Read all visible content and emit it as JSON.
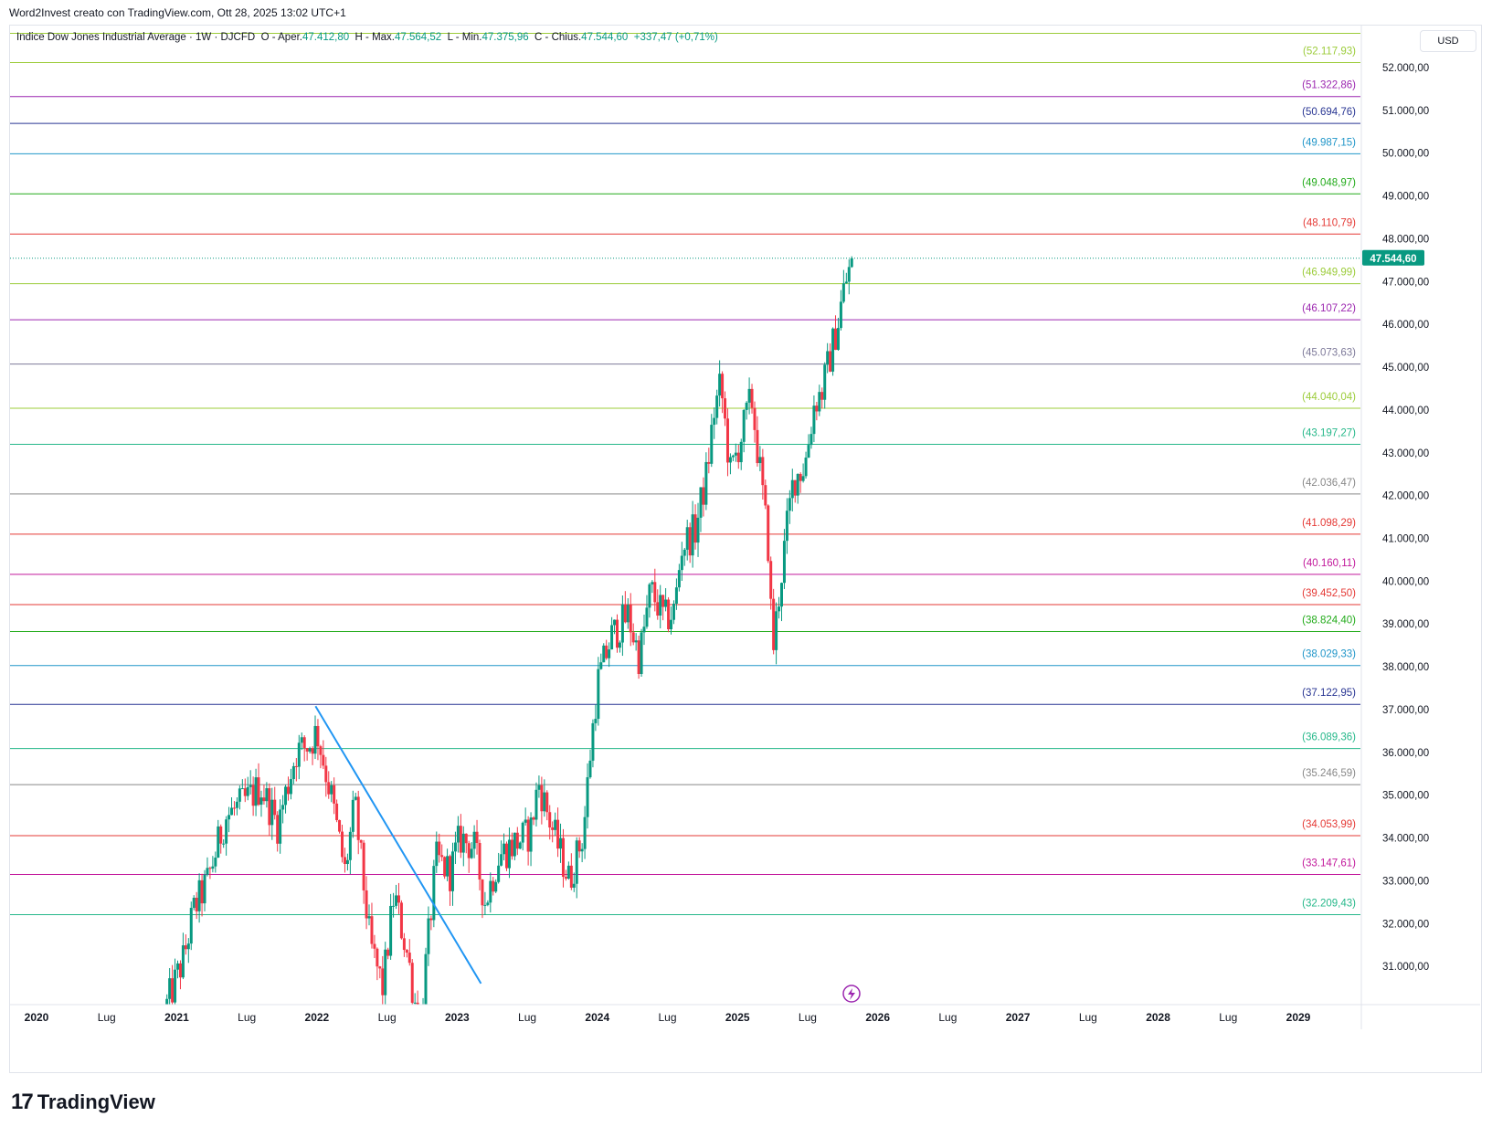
{
  "topbar": {
    "text": "Word2Invest creato con TradingView.com, Ott 28, 2025 13:02 UTC+1"
  },
  "legend": {
    "symbol": "Indice Dow Jones Industrial Average · 1W · DJCFD",
    "open_label": "O - Aper.",
    "open": "47.412,80",
    "high_label": "H - Max.",
    "high": "47.564,52",
    "low_label": "L - Min.",
    "low": "47.375,96",
    "close_label": "C - Chius.",
    "close": "47.544,60",
    "change": "+337,47 (+0,71%)"
  },
  "currency": "USD",
  "footer": {
    "brand": "TradingView",
    "logo_icon": "tradingview-logo-icon"
  },
  "colors": {
    "up": "#089981",
    "down": "#f23645",
    "trend": "#2196f3",
    "last_price_bg": "#089981"
  },
  "chart_data": {
    "type": "candlestick",
    "title": "Indice Dow Jones Industrial Average · 1W · DJCFD",
    "ylim": [
      30000,
      53300
    ],
    "y_ticks": [
      "31.000,00",
      "32.000,00",
      "33.000,00",
      "34.000,00",
      "35.000,00",
      "36.000,00",
      "37.000,00",
      "38.000,00",
      "39.000,00",
      "40.000,00",
      "41.000,00",
      "42.000,00",
      "43.000,00",
      "44.000,00",
      "45.000,00",
      "46.000,00",
      "47.000,00",
      "48.000,00",
      "49.000,00",
      "50.000,00",
      "51.000,00",
      "52.000,00"
    ],
    "x_ticks": [
      "2020",
      "Lug",
      "2021",
      "Lug",
      "2022",
      "Lug",
      "2023",
      "Lug",
      "2024",
      "Lug",
      "2025",
      "Lug",
      "2026",
      "Lug",
      "2027",
      "Lug",
      "2028",
      "Lug",
      "2029"
    ],
    "x_tick_years": [
      2020.0,
      2020.5,
      2021.0,
      2021.5,
      2022.0,
      2022.5,
      2023.0,
      2023.5,
      2024.0,
      2024.5,
      2025.0,
      2025.5,
      2026.0,
      2026.5,
      2027.0,
      2027.5,
      2028.0,
      2028.5,
      2029.0
    ],
    "last_price": {
      "value": 47544.6,
      "label": "47.544,60"
    },
    "horizontal_levels": [
      {
        "value": 52800.0,
        "label": "",
        "color": "#9ccc3a"
      },
      {
        "value": 52117.93,
        "label": "(52.117,93)",
        "color": "#9ccc3a"
      },
      {
        "value": 51322.86,
        "label": "(51.322,86)",
        "color": "#9c27b0"
      },
      {
        "value": 50694.76,
        "label": "(50.694,76)",
        "color": "#283593"
      },
      {
        "value": 49987.15,
        "label": "(49.987,15)",
        "color": "#2196c9"
      },
      {
        "value": 49048.97,
        "label": "(49.048,97)",
        "color": "#22ab1a"
      },
      {
        "value": 48110.79,
        "label": "(48.110,79)",
        "color": "#e53935"
      },
      {
        "value": 46949.99,
        "label": "(46.949,99)",
        "color": "#9ccc3a"
      },
      {
        "value": 46107.22,
        "label": "(46.107,22)",
        "color": "#9c27b0"
      },
      {
        "value": 45073.63,
        "label": "(45.073,63)",
        "color": "#7e7a9a"
      },
      {
        "value": 44040.04,
        "label": "(44.040,04)",
        "color": "#9ccc3a"
      },
      {
        "value": 43197.27,
        "label": "(43.197,27)",
        "color": "#26b88a"
      },
      {
        "value": 42036.47,
        "label": "(42.036,47)",
        "color": "#888888"
      },
      {
        "value": 41098.29,
        "label": "(41.098,29)",
        "color": "#e53935"
      },
      {
        "value": 40160.11,
        "label": "(40.160,11)",
        "color": "#c2189b"
      },
      {
        "value": 39452.5,
        "label": "(39.452,50)",
        "color": "#e53935"
      },
      {
        "value": 38824.4,
        "label": "(38.824,40)",
        "color": "#22ab1a"
      },
      {
        "value": 38029.33,
        "label": "(38.029,33)",
        "color": "#2196c9"
      },
      {
        "value": 37122.95,
        "label": "(37.122,95)",
        "color": "#283593"
      },
      {
        "value": 36089.36,
        "label": "(36.089,36)",
        "color": "#26b88a"
      },
      {
        "value": 35246.59,
        "label": "(35.246,59)",
        "color": "#888888"
      },
      {
        "value": 34053.99,
        "label": "(34.053,99)",
        "color": "#e53935"
      },
      {
        "value": 33147.61,
        "label": "(33.147,61)",
        "color": "#c2189b"
      },
      {
        "value": 32209.43,
        "label": "(32.209,43)",
        "color": "#26b88a"
      }
    ],
    "trendline": {
      "from": {
        "x": 2021.99,
        "y": 37080
      },
      "to": {
        "x": 2023.17,
        "y": 30600
      }
    },
    "price_path": [
      [
        2020.93,
        30100
      ],
      [
        2021.05,
        31200
      ],
      [
        2021.12,
        32300
      ],
      [
        2021.22,
        33000
      ],
      [
        2021.35,
        34500
      ],
      [
        2021.47,
        34800
      ],
      [
        2021.6,
        35200
      ],
      [
        2021.72,
        34300
      ],
      [
        2021.85,
        36000
      ],
      [
        2021.95,
        36200
      ],
      [
        2022.0,
        36500
      ],
      [
        2022.1,
        35000
      ],
      [
        2022.2,
        33200
      ],
      [
        2022.27,
        34800
      ],
      [
        2022.38,
        31500
      ],
      [
        2022.47,
        30500
      ],
      [
        2022.55,
        32700
      ],
      [
        2022.65,
        31200
      ],
      [
        2022.73,
        29500
      ],
      [
        2022.85,
        33500
      ],
      [
        2022.95,
        33200
      ],
      [
        2023.02,
        34000
      ],
      [
        2023.12,
        33800
      ],
      [
        2023.2,
        32500
      ],
      [
        2023.3,
        33600
      ],
      [
        2023.42,
        33900
      ],
      [
        2023.52,
        34100
      ],
      [
        2023.58,
        35300
      ],
      [
        2023.68,
        34200
      ],
      [
        2023.8,
        33000
      ],
      [
        2023.9,
        34100
      ],
      [
        2023.95,
        36000
      ],
      [
        2024.0,
        37600
      ],
      [
        2024.1,
        38700
      ],
      [
        2024.22,
        39200
      ],
      [
        2024.3,
        38200
      ],
      [
        2024.38,
        39800
      ],
      [
        2024.48,
        39100
      ],
      [
        2024.55,
        39300
      ],
      [
        2024.6,
        40800
      ],
      [
        2024.7,
        41200
      ],
      [
        2024.78,
        42500
      ],
      [
        2024.83,
        43900
      ],
      [
        2024.88,
        44600
      ],
      [
        2024.95,
        42500
      ],
      [
        2025.02,
        43300
      ],
      [
        2025.1,
        44300
      ],
      [
        2025.18,
        42000
      ],
      [
        2025.22,
        40800
      ],
      [
        2025.25,
        38300
      ],
      [
        2025.3,
        39800
      ],
      [
        2025.35,
        41200
      ],
      [
        2025.4,
        42400
      ],
      [
        2025.48,
        42700
      ],
      [
        2025.55,
        44200
      ],
      [
        2025.6,
        44400
      ],
      [
        2025.65,
        45100
      ],
      [
        2025.72,
        46100
      ],
      [
        2025.75,
        46700
      ],
      [
        2025.79,
        47200
      ],
      [
        2025.82,
        47544.6
      ]
    ]
  }
}
